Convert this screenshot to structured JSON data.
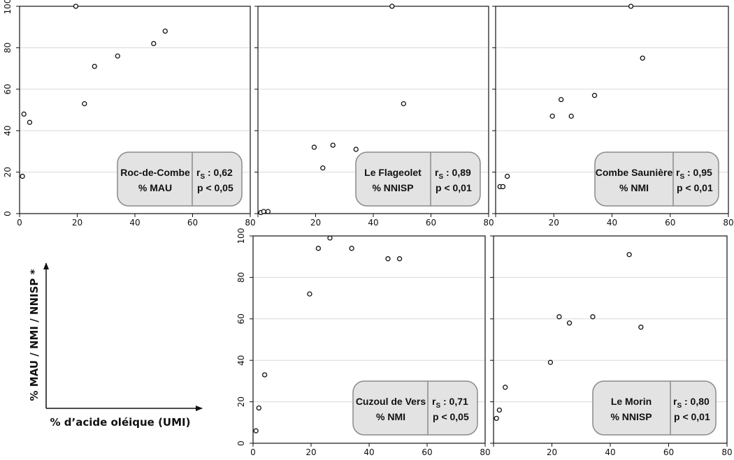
{
  "legend": {
    "x_label": "% d’acide oléique (UMI)",
    "y_label": "% MAU / NMI / NNISP *"
  },
  "panel_texts": [
    {
      "site": "Roc-de-Combe",
      "measure": "% MAU",
      "rs_value": ": 0,62",
      "p_value": "p < 0,05"
    },
    {
      "site": "Le Flageolet",
      "measure": "% NNISP",
      "rs_value": ": 0,89",
      "p_value": "p < 0,01"
    },
    {
      "site": "Combe Saunière",
      "measure": "% NMI",
      "rs_value": ": 0,95",
      "p_value": "p < 0,01"
    },
    {
      "site": "Cuzoul de Vers",
      "measure": "% NMI",
      "rs_value": ": 0,71",
      "p_value": "p < 0,05"
    },
    {
      "site": "Le Morin",
      "measure": "% NNISP",
      "rs_value": ": 0,80",
      "p_value": "p < 0,01"
    }
  ],
  "chart_data": [
    {
      "type": "scatter",
      "xlim": [
        0,
        80
      ],
      "ylim": [
        0,
        100
      ],
      "x_ticks": [
        "0",
        "20",
        "40",
        "60",
        "80"
      ],
      "y_ticks": [
        "0",
        "20",
        "40",
        "60",
        "80",
        "100"
      ],
      "grid": true,
      "points": [
        [
          1,
          18
        ],
        [
          1.5,
          48
        ],
        [
          3.5,
          44
        ],
        [
          19.5,
          100
        ],
        [
          22.5,
          53
        ],
        [
          26,
          71
        ],
        [
          34,
          76
        ],
        [
          46.5,
          82
        ],
        [
          50.5,
          88
        ]
      ]
    },
    {
      "type": "scatter",
      "xlim": [
        0,
        80
      ],
      "ylim": [
        0,
        100
      ],
      "x_ticks": [
        "20",
        "40",
        "60",
        "80"
      ],
      "y_ticks": [],
      "grid": true,
      "points": [
        [
          1,
          0.5
        ],
        [
          2,
          1
        ],
        [
          3.5,
          1
        ],
        [
          19.5,
          32
        ],
        [
          22.5,
          22
        ],
        [
          26,
          33
        ],
        [
          34,
          31
        ],
        [
          46.5,
          100
        ],
        [
          50.5,
          53
        ]
      ]
    },
    {
      "type": "scatter",
      "xlim": [
        0,
        80
      ],
      "ylim": [
        0,
        100
      ],
      "x_ticks": [
        "20",
        "40",
        "60",
        "80"
      ],
      "y_ticks": [],
      "grid": true,
      "points": [
        [
          1.5,
          13
        ],
        [
          2.5,
          13
        ],
        [
          4,
          18
        ],
        [
          19.5,
          47
        ],
        [
          22.5,
          55
        ],
        [
          26,
          47
        ],
        [
          34,
          57
        ],
        [
          46.5,
          100
        ],
        [
          50.5,
          75
        ]
      ]
    },
    {
      "type": "scatter",
      "xlim": [
        0,
        80
      ],
      "ylim": [
        0,
        100
      ],
      "x_ticks": [
        "0",
        "20",
        "40",
        "60",
        "80"
      ],
      "y_ticks": [
        "0",
        "20",
        "40",
        "60",
        "80",
        "100"
      ],
      "grid": true,
      "points": [
        [
          1,
          6
        ],
        [
          2,
          17
        ],
        [
          4,
          33
        ],
        [
          19.5,
          72
        ],
        [
          22.5,
          94
        ],
        [
          26.5,
          99
        ],
        [
          34,
          94
        ],
        [
          46.5,
          89
        ],
        [
          50.5,
          89
        ]
      ]
    },
    {
      "type": "scatter",
      "xlim": [
        0,
        80
      ],
      "ylim": [
        0,
        100
      ],
      "x_ticks": [
        "20",
        "40",
        "60",
        "80"
      ],
      "y_ticks": [],
      "grid": true,
      "points": [
        [
          1,
          12
        ],
        [
          2,
          16
        ],
        [
          4,
          27
        ],
        [
          19.5,
          39
        ],
        [
          22.5,
          61
        ],
        [
          26,
          58
        ],
        [
          34,
          61
        ],
        [
          46.5,
          91
        ],
        [
          50.5,
          56
        ]
      ]
    }
  ]
}
